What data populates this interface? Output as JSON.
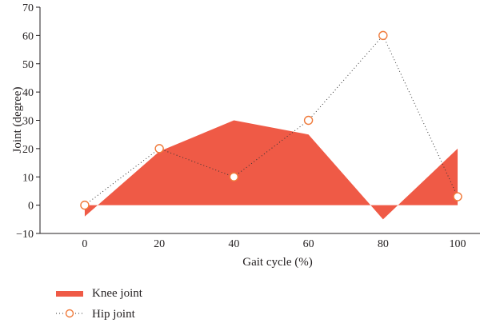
{
  "chart_data": {
    "type": "area",
    "xlabel": "Gait cycle (%)",
    "ylabel": "Joint (degree)",
    "xlim": [
      -12,
      106
    ],
    "ylim": [
      -10,
      70
    ],
    "xticks": [
      0,
      20,
      40,
      60,
      80,
      100
    ],
    "yticks": [
      -10,
      0,
      10,
      20,
      30,
      40,
      50,
      60,
      70
    ],
    "legend_position": "bottom-left",
    "series": [
      {
        "name": "Knee joint",
        "style": "filled-area",
        "color": "#ef5a46",
        "x": [
          0,
          20,
          40,
          60,
          80,
          100
        ],
        "y": [
          -4,
          19,
          30,
          25,
          -5,
          20
        ]
      },
      {
        "name": "Hip joint",
        "style": "dotted-line-open-circles",
        "color": "#f07a3a",
        "line_color": "#333333",
        "x": [
          0,
          20,
          40,
          60,
          80,
          100
        ],
        "y": [
          0,
          20,
          10,
          30,
          60,
          3
        ]
      }
    ]
  }
}
